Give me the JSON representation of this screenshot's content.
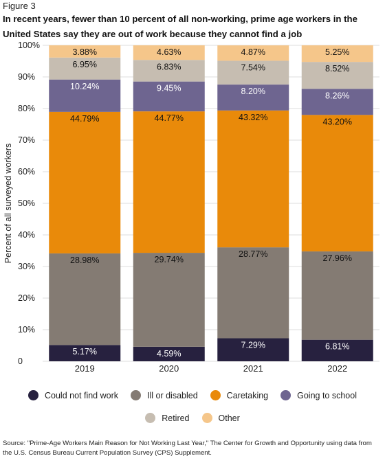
{
  "figure_label": "Figure 3",
  "title": "In recent years, fewer than 10 percent of all non-working, prime age workers in the United States say they are out of work because they cannot find a job",
  "source": "Source:  \"Prime-Age Workers Main Reason for Not Working Last Year,\" The Center for Growth and Opportunity using data from the U.S. Census Bureau Current Population Survey (CPS) Supplement.",
  "chart_data": {
    "type": "bar",
    "stacked": true,
    "categories": [
      "2019",
      "2020",
      "2021",
      "2022"
    ],
    "ylabel": "Percent of all surveyed workers",
    "ylim": [
      0,
      100
    ],
    "y_ticks": [
      "0",
      "10%",
      "20%",
      "30%",
      "40%",
      "50%",
      "60%",
      "70%",
      "80%",
      "90%",
      "100%"
    ],
    "grid": true,
    "legend_position": "bottom",
    "series": [
      {
        "name": "Could not find work",
        "color": "#27213f",
        "label_color": "#ffffff",
        "values": [
          5.17,
          4.59,
          7.29,
          6.81
        ],
        "labels": [
          "5.17%",
          "4.59%",
          "7.29%",
          "6.81%"
        ]
      },
      {
        "name": "Ill or disabled",
        "color": "#847b73",
        "label_color": "#111111",
        "values": [
          28.98,
          29.74,
          28.77,
          27.96
        ],
        "labels": [
          "28.98%",
          "29.74%",
          "28.77%",
          "27.96%"
        ]
      },
      {
        "name": "Caretaking",
        "color": "#e98a0a",
        "label_color": "#111111",
        "values": [
          44.79,
          44.77,
          43.32,
          43.2
        ],
        "labels": [
          "44.79%",
          "44.77%",
          "43.32%",
          "43.20%"
        ]
      },
      {
        "name": "Going to school",
        "color": "#6e6590",
        "label_color": "#ffffff",
        "values": [
          10.24,
          9.45,
          8.2,
          8.26
        ],
        "labels": [
          "10.24%",
          "9.45%",
          "8.20%",
          "8.26%"
        ]
      },
      {
        "name": "Retired",
        "color": "#c6bdb1",
        "label_color": "#111111",
        "values": [
          6.95,
          6.83,
          7.54,
          8.52
        ],
        "labels": [
          "6.95%",
          "6.83%",
          "7.54%",
          "8.52%"
        ]
      },
      {
        "name": "Other",
        "color": "#f5c68a",
        "label_color": "#111111",
        "values": [
          3.88,
          4.63,
          4.87,
          5.25
        ],
        "labels": [
          "3.88%",
          "4.63%",
          "4.87%",
          "5.25%"
        ]
      }
    ]
  }
}
